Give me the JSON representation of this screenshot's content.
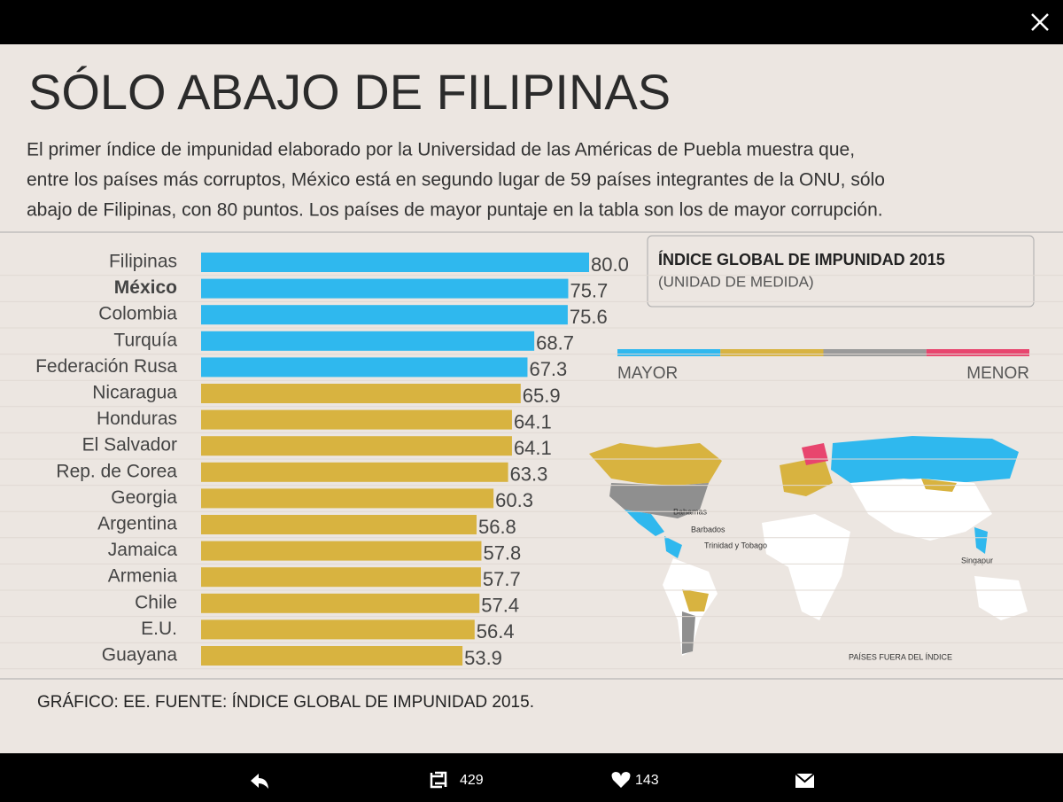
{
  "chart_data": {
    "type": "bar",
    "orientation": "horizontal",
    "title": "SÓLO ABAJO DE FILIPINAS",
    "subtitle": [
      "El primer índice de impunidad elaborado por la Universidad de las Américas de Puebla muestra que,",
      "entre los países más corruptos, México está en segundo lugar de 59 países integrantes de la ONU, sólo",
      "abajo de Filipinas, con 80 puntos. Los países de mayor puntaje en la tabla son los de mayor corrupción."
    ],
    "categories": [
      "Filipinas",
      "México",
      "Colombia",
      "Turquía",
      "Federación Rusa",
      "Nicaragua",
      "Honduras",
      "El Salvador",
      "Rep. de Corea",
      "Georgia",
      "Argentina",
      "Jamaica",
      "Armenia",
      "Chile",
      "E.U.",
      "Guayana"
    ],
    "highlighted_category": "México",
    "values": [
      80.0,
      75.7,
      75.6,
      68.7,
      67.3,
      65.9,
      64.1,
      64.1,
      63.3,
      60.3,
      56.8,
      57.8,
      57.7,
      57.4,
      56.4,
      53.9
    ],
    "value_labels": [
      "80.0",
      "75.7",
      "75.6",
      "68.7",
      "67.3",
      "65.9",
      "64.1",
      "64.1",
      "63.3",
      "60.3",
      "56.8",
      "57.8",
      "57.7",
      "57.4",
      "56.4",
      "53.9"
    ],
    "colors": [
      "#2fb8ee",
      "#2fb8ee",
      "#2fb8ee",
      "#2fb8ee",
      "#2fb8ee",
      "#d8b340",
      "#d8b340",
      "#d8b340",
      "#d8b340",
      "#d8b340",
      "#d8b340",
      "#d8b340",
      "#d8b340",
      "#d8b340",
      "#d8b340",
      "#d8b340"
    ],
    "legend": {
      "title": "ÍNDICE GLOBAL DE IMPUNIDAD 2015",
      "subtitle": "(UNIDAD DE MEDIDA)",
      "scale_colors": [
        "#2fb8ee",
        "#d8b340",
        "#9a9a9a",
        "#e8456e"
      ],
      "low_label": "MAYOR",
      "high_label": "MENOR"
    },
    "map_labels": [
      "Bahamas",
      "Barbados",
      "Trinidad y Tobago",
      "Singapur",
      "PAÍSES FUERA DEL ÍNDICE"
    ],
    "footer": "GRÁFICO: EE. FUENTE: ÍNDICE GLOBAL DE IMPUNIDAD 2015."
  },
  "toolbar": {
    "retweets": "429",
    "likes": "143"
  }
}
